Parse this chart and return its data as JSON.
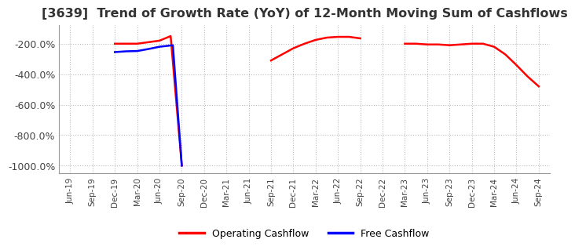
{
  "title": "[3639]  Trend of Growth Rate (YoY) of 12-Month Moving Sum of Cashflows",
  "title_fontsize": 11.5,
  "ylim": [
    -1050,
    -80
  ],
  "yticks": [
    -1000,
    -800,
    -600,
    -400,
    -200
  ],
  "ytick_labels": [
    "-1000.0%",
    "-800.0%",
    "-600.0%",
    "-400.0%",
    "-200.0%"
  ],
  "background_color": "#ffffff",
  "grid_color": "#bbbbbb",
  "operating_color": "#ff0000",
  "free_color": "#0000ff",
  "legend_labels": [
    "Operating Cashflow",
    "Free Cashflow"
  ],
  "x_labels": [
    "Jun-19",
    "Sep-19",
    "Dec-19",
    "Mar-20",
    "Jun-20",
    "Sep-20",
    "Dec-20",
    "Mar-21",
    "Jun-21",
    "Sep-21",
    "Dec-21",
    "Mar-22",
    "Jun-22",
    "Sep-22",
    "Dec-22",
    "Mar-23",
    "Jun-23",
    "Sep-23",
    "Dec-23",
    "Mar-24",
    "Jun-24",
    "Sep-24"
  ],
  "op_seg1_x": [
    2,
    2.5,
    3,
    3.5,
    4,
    4.5,
    5
  ],
  "op_seg1_y": [
    -200,
    -200,
    -200,
    -190,
    -180,
    -150,
    -1000
  ],
  "op_seg2_x": [
    9,
    9.5,
    10,
    10.5,
    11,
    11.5,
    12,
    12.5,
    13
  ],
  "op_seg2_y": [
    -310,
    -270,
    -230,
    -200,
    -175,
    -160,
    -155,
    -155,
    -165
  ],
  "op_seg3_x": [
    15,
    15.5,
    16,
    16.5,
    17,
    17.5,
    18,
    18.5,
    19,
    19.5,
    20,
    20.5,
    21
  ],
  "op_seg3_y": [
    -200,
    -200,
    -205,
    -205,
    -210,
    -205,
    -200,
    -200,
    -220,
    -270,
    -340,
    -415,
    -480
  ],
  "free_seg1_x": [
    2,
    2.5,
    3,
    3.5,
    4,
    4.3,
    4.6,
    5
  ],
  "free_seg1_y": [
    -255,
    -250,
    -248,
    -235,
    -220,
    -215,
    -210,
    -1000
  ]
}
